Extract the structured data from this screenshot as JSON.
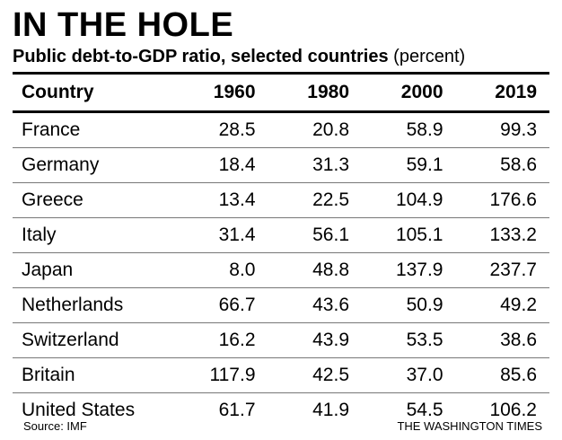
{
  "title": "IN THE HOLE",
  "subtitle_main": "Public debt-to-GDP ratio, selected countries",
  "subtitle_unit": "(percent)",
  "source": "Source: IMF",
  "credit": "THE WASHINGTON TIMES",
  "chart_data": {
    "type": "table",
    "title": "IN THE HOLE",
    "subtitle": "Public debt-to-GDP ratio, selected countries (percent)",
    "columns": [
      "Country",
      "1960",
      "1980",
      "2000",
      "2019"
    ],
    "rows": [
      [
        "France",
        "28.5",
        "20.8",
        "58.9",
        "99.3"
      ],
      [
        "Germany",
        "18.4",
        "31.3",
        "59.1",
        "58.6"
      ],
      [
        "Greece",
        "13.4",
        "22.5",
        "104.9",
        "176.6"
      ],
      [
        "Italy",
        "31.4",
        "56.1",
        "105.1",
        "133.2"
      ],
      [
        "Japan",
        "8.0",
        "48.8",
        "137.9",
        "237.7"
      ],
      [
        "Netherlands",
        "66.7",
        "43.6",
        "50.9",
        "49.2"
      ],
      [
        "Switzerland",
        "16.2",
        "43.9",
        "53.5",
        "38.6"
      ],
      [
        "Britain",
        "117.9",
        "42.5",
        "37.0",
        "85.6"
      ],
      [
        "United States",
        "61.7",
        "41.9",
        "54.5",
        "106.2"
      ]
    ]
  }
}
